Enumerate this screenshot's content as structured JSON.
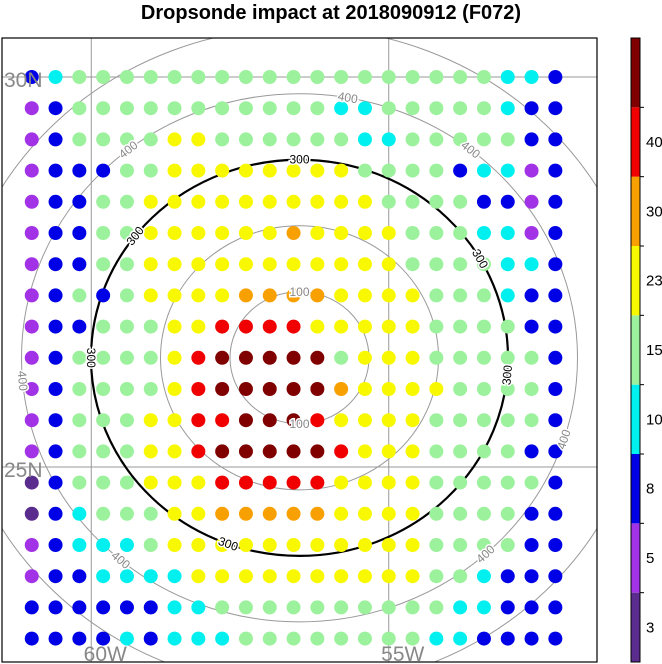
{
  "chart_data": {
    "type": "scatter",
    "title": "Dropsonde impact at 2018090912 (F072)",
    "subtitle": "",
    "x_axis": {
      "unit": "deg lon",
      "range": [
        -61.5,
        -51.5
      ],
      "tick_labels": [
        "60W",
        "55W"
      ],
      "tick_values": [
        -60,
        -55
      ]
    },
    "y_axis": {
      "unit": "deg lat",
      "range": [
        22.5,
        30.5
      ],
      "tick_labels": [
        "30N",
        "25N"
      ],
      "tick_values": [
        30,
        25
      ]
    },
    "grid": true,
    "contours": {
      "center": [
        -56.5,
        26.4
      ],
      "levels": [
        100,
        200,
        300,
        400
      ],
      "labels": [
        "100",
        "300",
        "400"
      ],
      "highlight_level": 300
    },
    "colorbar": {
      "tick_labels": [
        "3",
        "5",
        "8",
        "10",
        "15",
        "23",
        "30",
        "40"
      ],
      "bins": [
        {
          "from": 0,
          "to": 3,
          "color": "#5a2c8e"
        },
        {
          "from": 3,
          "to": 5,
          "color": "#a232e6"
        },
        {
          "from": 5,
          "to": 8,
          "color": "#0000e6"
        },
        {
          "from": 8,
          "to": 10,
          "color": "#00f0f0"
        },
        {
          "from": 10,
          "to": 15,
          "color": "#9cf19c"
        },
        {
          "from": 15,
          "to": 23,
          "color": "#f8f800"
        },
        {
          "from": 23,
          "to": 30,
          "color": "#f8a000"
        },
        {
          "from": 30,
          "to": 40,
          "color": "#f00000"
        },
        {
          "from": 40,
          "to": 50,
          "color": "#800000"
        }
      ]
    },
    "grid_points": {
      "lon": [
        -61.0,
        -60.6,
        -60.2,
        -59.8,
        -59.4,
        -59.0,
        -58.6,
        -58.2,
        -57.8,
        -57.4,
        -57.0,
        -56.6,
        -56.2,
        -55.8,
        -55.4,
        -55.0,
        -54.6,
        -54.2,
        -53.8,
        -53.4,
        -53.0,
        -52.6,
        -52.2
      ],
      "lat": [
        30.0,
        29.6,
        29.2,
        28.8,
        28.4,
        28.0,
        27.6,
        27.2,
        26.8,
        26.4,
        26.0,
        25.6,
        25.2,
        24.8,
        24.4,
        24.0,
        23.6,
        23.2,
        22.8
      ],
      "category_rows": [
        "23444444444444444444332",
        "12444444444443344444322",
        "12444455444444334444422",
        "12224455555555444423312",
        "12244555555555544442212",
        "12244555555655554443312",
        "12244555555555554444332",
        "12424555566665555444322",
        "12244455777755555444422",
        "12444457888884555444442",
        "12444457888886555544442",
        "12444557788875555444442",
        "12444557888887555444422",
        "02444555777775555444442",
        "02344455666665555444422",
        "12333455555555555444422",
        "12233335555555555443222",
        "22222233444444444433222",
        "22223233344444444332222"
      ]
    }
  }
}
